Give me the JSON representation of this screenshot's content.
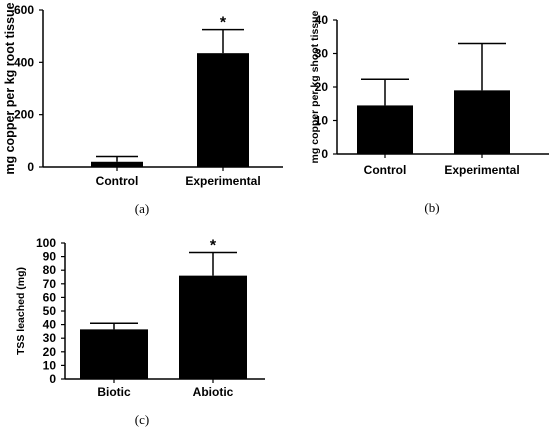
{
  "chart_data": [
    {
      "type": "bar",
      "panel_label": "(a)",
      "ylabel": "mg copper per kg root tissue",
      "categories": [
        "Control",
        "Experimental"
      ],
      "values": [
        20,
        435
      ],
      "error_upper": [
        40,
        525
      ],
      "significance": [
        "",
        "*"
      ],
      "ylim": [
        0,
        600
      ],
      "yticks": [
        0,
        200,
        400,
        600
      ],
      "grid": false,
      "bar_color": "#000000"
    },
    {
      "type": "bar",
      "panel_label": "(b)",
      "ylabel": "mg copper per kg shoot tissue",
      "categories": [
        "Control",
        "Experimental"
      ],
      "values": [
        14.5,
        19
      ],
      "error_upper": [
        22.3,
        33
      ],
      "significance": [
        "",
        ""
      ],
      "ylim": [
        0,
        40
      ],
      "yticks": [
        0,
        10,
        20,
        30,
        40
      ],
      "grid": false,
      "bar_color": "#000000"
    },
    {
      "type": "bar",
      "panel_label": "(c)",
      "ylabel": "TSS leached (mg)",
      "categories": [
        "Biotic",
        "Abiotic"
      ],
      "values": [
        36.5,
        76
      ],
      "error_upper": [
        41,
        93
      ],
      "significance": [
        "",
        "*"
      ],
      "ylim": [
        0,
        100
      ],
      "yticks": [
        0,
        10,
        20,
        30,
        40,
        50,
        60,
        70,
        80,
        90,
        100
      ],
      "grid": false,
      "bar_color": "#000000"
    }
  ]
}
